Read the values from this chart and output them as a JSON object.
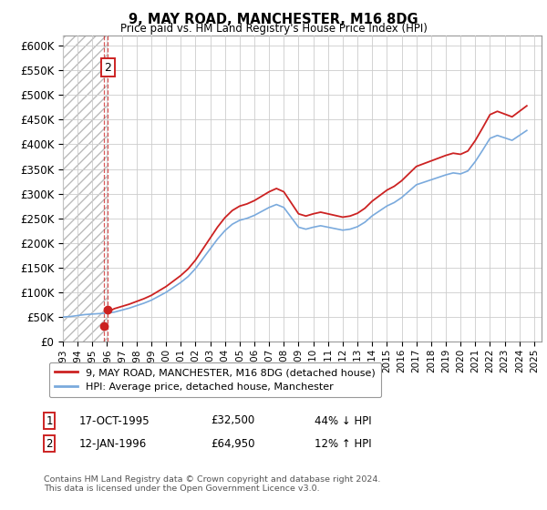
{
  "title": "9, MAY ROAD, MANCHESTER, M16 8DG",
  "subtitle": "Price paid vs. HM Land Registry's House Price Index (HPI)",
  "legend_line1": "9, MAY ROAD, MANCHESTER, M16 8DG (detached house)",
  "legend_line2": "HPI: Average price, detached house, Manchester",
  "transaction1_date": "17-OCT-1995",
  "transaction1_price": 32500,
  "transaction2_date": "12-JAN-1996",
  "transaction2_price": 64950,
  "footnote": "Contains HM Land Registry data © Crown copyright and database right 2024.\nThis data is licensed under the Open Government Licence v3.0.",
  "hpi_color": "#7aaadd",
  "price_color": "#cc2222",
  "grid_color": "#cccccc",
  "ylim_max": 620000,
  "ylim_min": 0,
  "xstart": 1993.0,
  "xend": 2025.5,
  "transaction1_x": 1995.79,
  "transaction2_x": 1996.04,
  "years_hpi": [
    1993.0,
    1993.5,
    1994.0,
    1994.5,
    1995.0,
    1995.5,
    1996.0,
    1996.5,
    1997.0,
    1997.5,
    1998.0,
    1998.5,
    1999.0,
    1999.5,
    2000.0,
    2000.5,
    2001.0,
    2001.5,
    2002.0,
    2002.5,
    2003.0,
    2003.5,
    2004.0,
    2004.5,
    2005.0,
    2005.5,
    2006.0,
    2006.5,
    2007.0,
    2007.5,
    2008.0,
    2008.5,
    2009.0,
    2009.5,
    2010.0,
    2010.5,
    2011.0,
    2011.5,
    2012.0,
    2012.5,
    2013.0,
    2013.5,
    2014.0,
    2014.5,
    2015.0,
    2015.5,
    2016.0,
    2016.5,
    2017.0,
    2017.5,
    2018.0,
    2018.5,
    2019.0,
    2019.5,
    2020.0,
    2020.5,
    2021.0,
    2021.5,
    2022.0,
    2022.5,
    2023.0,
    2023.5,
    2024.0,
    2024.5
  ],
  "hpi_values": [
    50000,
    51000,
    53000,
    55000,
    56000,
    57000,
    58000,
    60000,
    64000,
    68000,
    73000,
    78000,
    84000,
    92000,
    100000,
    110000,
    120000,
    132000,
    148000,
    168000,
    188000,
    208000,
    225000,
    238000,
    246000,
    250000,
    256000,
    264000,
    272000,
    278000,
    272000,
    252000,
    232000,
    228000,
    232000,
    235000,
    232000,
    229000,
    226000,
    228000,
    233000,
    242000,
    255000,
    265000,
    275000,
    282000,
    292000,
    305000,
    318000,
    323000,
    328000,
    333000,
    338000,
    342000,
    340000,
    346000,
    365000,
    388000,
    412000,
    418000,
    413000,
    408000,
    418000,
    428000
  ]
}
